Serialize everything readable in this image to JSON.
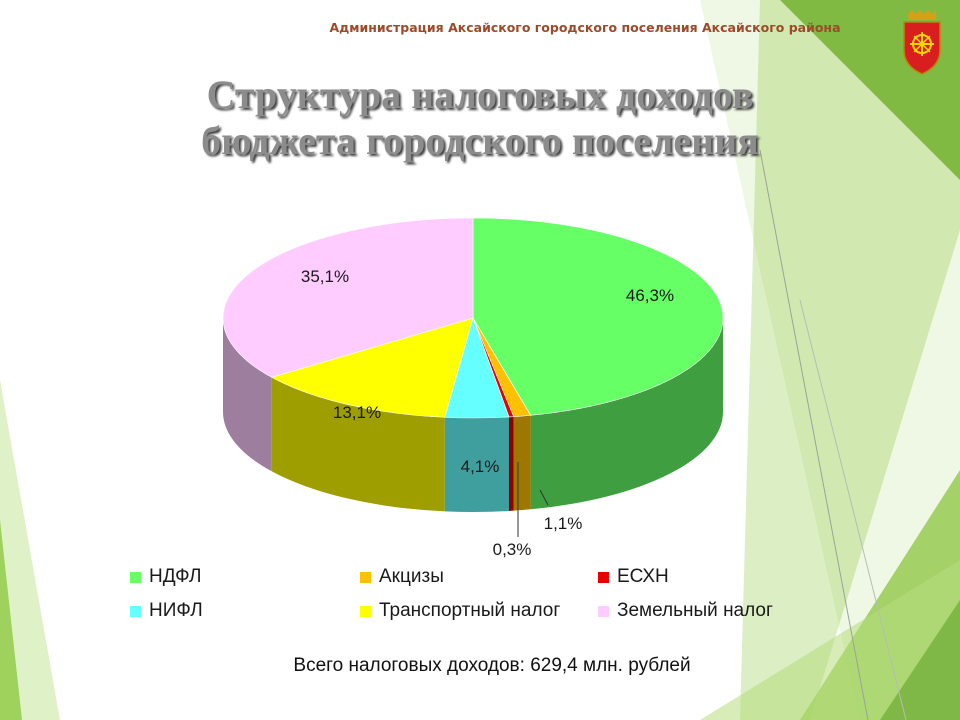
{
  "header": {
    "text": "Администрация Аксайского городского поселения Аксайского района"
  },
  "title": {
    "line1": "Структура налоговых доходов",
    "line2": "бюджета городского поселения"
  },
  "chart_data": {
    "type": "pie",
    "categories": [
      "НДФЛ",
      "Акцизы",
      "ЕСХН",
      "НИФЛ",
      "Транспортный налог",
      "Земельный налог"
    ],
    "values": [
      46.3,
      1.1,
      0.3,
      4.1,
      13.1,
      35.1
    ],
    "labels": [
      "46,3%",
      "1,1%",
      "0,3%",
      "4,1%",
      "13,1%",
      "35,1%"
    ],
    "colors": [
      "#66ff66",
      "#ffc000",
      "#e60000",
      "#66ffff",
      "#ffff00",
      "#ffccff"
    ],
    "legend_position": "bottom"
  },
  "footer": {
    "total": "Всего налоговых доходов: 629,4 млн. рублей"
  },
  "emblem": {
    "icon": "coat-of-arms-icon",
    "color": "#d81e1e"
  }
}
